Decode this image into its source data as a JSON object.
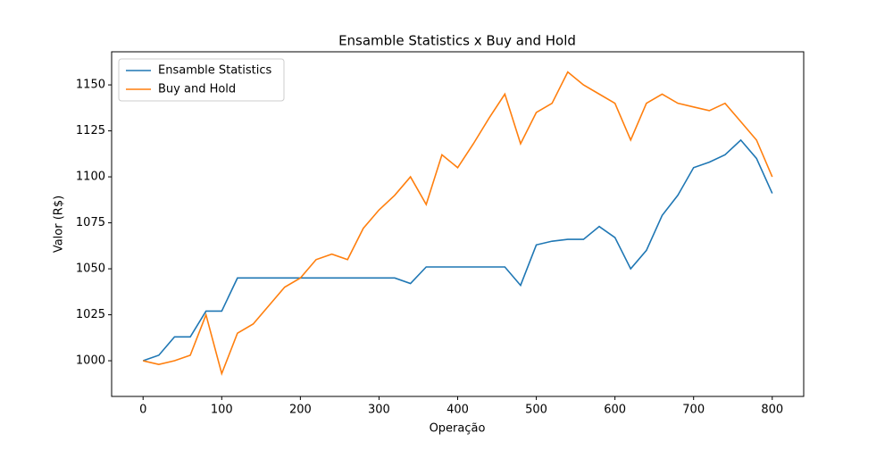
{
  "chart_data": {
    "type": "line",
    "title": "Ensamble Statistics x Buy and Hold",
    "x_label": "Operação",
    "y_label": "Valor (R$)",
    "x": [
      0,
      20,
      40,
      60,
      80,
      100,
      120,
      140,
      160,
      180,
      200,
      220,
      240,
      260,
      280,
      300,
      320,
      340,
      360,
      380,
      400,
      420,
      440,
      460,
      480,
      500,
      520,
      540,
      560,
      580,
      600,
      620,
      640,
      660,
      680,
      700,
      720,
      740,
      760,
      780,
      800
    ],
    "series": [
      {
        "name": "Ensamble Statistics",
        "color": "#1f77b4",
        "values": [
          1000,
          1003,
          1013,
          1013,
          1027,
          1027,
          1045,
          1045,
          1045,
          1045,
          1045,
          1045,
          1045,
          1045,
          1045,
          1045,
          1045,
          1042,
          1051,
          1051,
          1051,
          1051,
          1051,
          1051,
          1041,
          1063,
          1065,
          1066,
          1066,
          1073,
          1067,
          1050,
          1060,
          1079,
          1090,
          1105,
          1108,
          1112,
          1120,
          1110,
          1091
        ]
      },
      {
        "name": "Buy and Hold",
        "color": "#ff7f0e",
        "values": [
          1000,
          998,
          1000,
          1003,
          1025,
          993,
          1015,
          1020,
          1030,
          1040,
          1045,
          1055,
          1058,
          1055,
          1072,
          1082,
          1090,
          1100,
          1085,
          1112,
          1105,
          1118,
          1132,
          1145,
          1118,
          1135,
          1140,
          1157,
          1150,
          1145,
          1140,
          1120,
          1140,
          1145,
          1140,
          1138,
          1136,
          1140,
          1130,
          1120,
          1100
        ]
      }
    ],
    "xlim": [
      -40,
      840
    ],
    "ylim": [
      980.6,
      1168
    ],
    "xticks": [
      0,
      100,
      200,
      300,
      400,
      500,
      600,
      700,
      800
    ],
    "yticks": [
      1000,
      1025,
      1050,
      1075,
      1100,
      1125,
      1150
    ],
    "legend": "upper left"
  }
}
